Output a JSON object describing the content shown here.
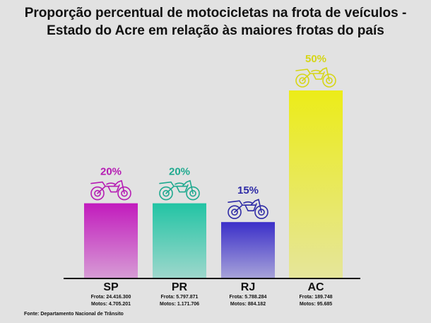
{
  "chart_data": {
    "type": "bar",
    "title_line1": "Proporção percentual de motocicletas na frota de veículos -",
    "title_line2": "Estado do Acre em relação às maiores frotas do país",
    "categories": [
      "SP",
      "PR",
      "RJ",
      "AC"
    ],
    "values": [
      20,
      20,
      15,
      50
    ],
    "value_labels": [
      "20%",
      "20%",
      "15%",
      "50%"
    ],
    "frota_labels": [
      "Frota: 24.416.300",
      "Frota: 5.797.871",
      "Frota: 5.788.284",
      "Frota: 189.748"
    ],
    "motos_labels": [
      "Motos: 4.705.201",
      "Motos: 1.171.706",
      "Motos: 884.182",
      "Motos: 95.685"
    ],
    "colors": [
      "#c21bbd",
      "#22c4a4",
      "#3b2fc9",
      "#ecec18"
    ],
    "label_colors": [
      "#b51cb3",
      "#1fa98f",
      "#2e2ba6",
      "#d6d616"
    ],
    "ylim": [
      0,
      50
    ],
    "icon": "motorcycle-icon",
    "source": "Fonte: Departamento Nacional de Trânsito"
  }
}
